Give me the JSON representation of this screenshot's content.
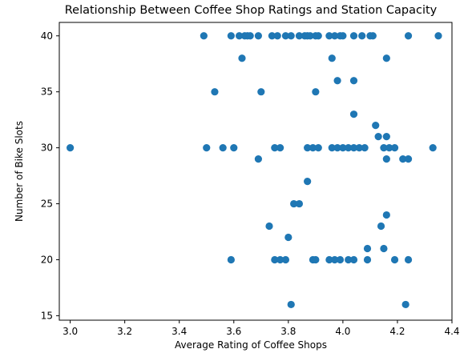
{
  "chart_data": {
    "type": "scatter",
    "title": "Relationship Between Coffee Shop Ratings and Station Capacity",
    "xlabel": "Average Rating of Coffee Shops",
    "ylabel": "Number of Bike Slots",
    "xlim": [
      2.96,
      4.4
    ],
    "ylim": [
      14.6,
      41.2
    ],
    "xticks": [
      3.0,
      3.2,
      3.4,
      3.6,
      3.8,
      4.0,
      4.2,
      4.4
    ],
    "xtick_labels": [
      "3.0",
      "3.2",
      "3.4",
      "3.6",
      "3.8",
      "4.0",
      "4.2",
      "4.4"
    ],
    "yticks": [
      15,
      20,
      25,
      30,
      35,
      40
    ],
    "ytick_labels": [
      "15",
      "20",
      "25",
      "30",
      "35",
      "40"
    ],
    "grid": false,
    "legend": "none",
    "marker_color": "#1f77b4",
    "series": [
      {
        "points": [
          [
            3.49,
            40
          ],
          [
            3.59,
            40
          ],
          [
            3.62,
            40
          ],
          [
            3.64,
            40
          ],
          [
            3.65,
            40
          ],
          [
            3.66,
            40
          ],
          [
            3.69,
            40
          ],
          [
            3.74,
            40
          ],
          [
            3.76,
            40
          ],
          [
            3.79,
            40
          ],
          [
            3.81,
            40
          ],
          [
            3.84,
            40
          ],
          [
            3.86,
            40
          ],
          [
            3.87,
            40
          ],
          [
            3.88,
            40
          ],
          [
            3.9,
            40
          ],
          [
            3.91,
            40
          ],
          [
            3.95,
            40
          ],
          [
            3.97,
            40
          ],
          [
            3.99,
            40
          ],
          [
            4.0,
            40
          ],
          [
            4.04,
            40
          ],
          [
            4.07,
            40
          ],
          [
            4.1,
            40
          ],
          [
            4.11,
            40
          ],
          [
            4.24,
            40
          ],
          [
            4.35,
            40
          ],
          [
            3.63,
            38
          ],
          [
            3.96,
            38
          ],
          [
            4.16,
            38
          ],
          [
            3.98,
            36
          ],
          [
            4.04,
            36
          ],
          [
            3.53,
            35
          ],
          [
            3.7,
            35
          ],
          [
            3.9,
            35
          ],
          [
            4.04,
            33
          ],
          [
            4.12,
            32
          ],
          [
            3.0,
            30
          ],
          [
            3.5,
            30
          ],
          [
            3.56,
            30
          ],
          [
            3.6,
            30
          ],
          [
            3.75,
            30
          ],
          [
            3.77,
            30
          ],
          [
            3.87,
            30
          ],
          [
            3.89,
            30
          ],
          [
            3.91,
            30
          ],
          [
            3.96,
            30
          ],
          [
            3.98,
            30
          ],
          [
            4.0,
            30
          ],
          [
            4.02,
            30
          ],
          [
            4.04,
            30
          ],
          [
            4.06,
            30
          ],
          [
            4.08,
            30
          ],
          [
            4.15,
            30
          ],
          [
            4.17,
            30
          ],
          [
            4.19,
            30
          ],
          [
            4.33,
            30
          ],
          [
            4.13,
            31
          ],
          [
            4.16,
            31
          ],
          [
            3.69,
            29
          ],
          [
            4.16,
            29
          ],
          [
            4.22,
            29
          ],
          [
            4.24,
            29
          ],
          [
            3.87,
            27
          ],
          [
            3.82,
            25
          ],
          [
            3.84,
            25
          ],
          [
            4.16,
            24
          ],
          [
            3.73,
            23
          ],
          [
            4.14,
            23
          ],
          [
            3.8,
            22
          ],
          [
            4.09,
            21
          ],
          [
            4.15,
            21
          ],
          [
            3.59,
            20
          ],
          [
            3.75,
            20
          ],
          [
            3.77,
            20
          ],
          [
            3.79,
            20
          ],
          [
            3.89,
            20
          ],
          [
            3.9,
            20
          ],
          [
            3.95,
            20
          ],
          [
            3.97,
            20
          ],
          [
            3.99,
            20
          ],
          [
            4.02,
            20
          ],
          [
            4.04,
            20
          ],
          [
            4.09,
            20
          ],
          [
            4.19,
            20
          ],
          [
            4.24,
            20
          ],
          [
            3.81,
            16
          ],
          [
            4.23,
            16
          ]
        ]
      }
    ]
  }
}
